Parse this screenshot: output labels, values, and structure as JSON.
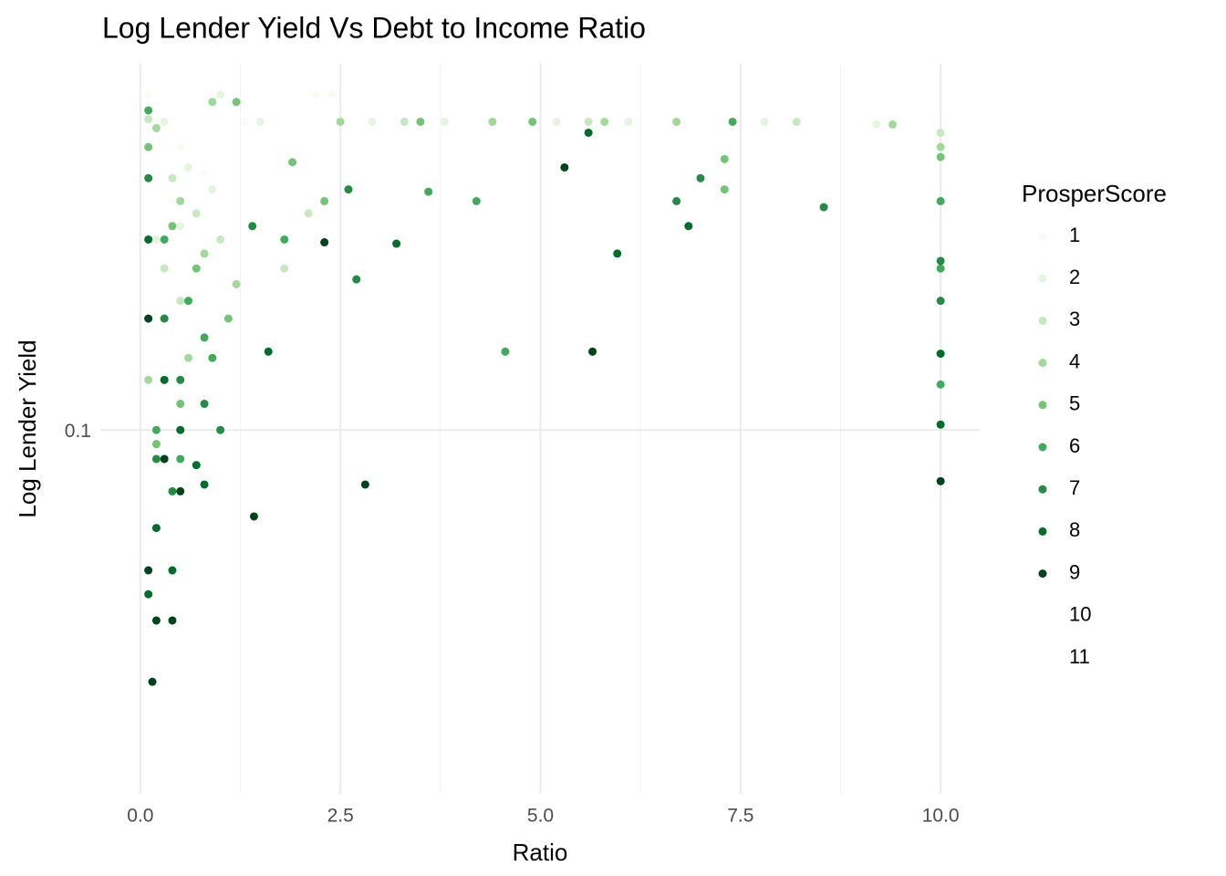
{
  "chart_data": {
    "type": "scatter",
    "title": "Log Lender Yield Vs Debt to Income Ratio",
    "x_label": "Ratio",
    "y_label": "Log Lender Yield",
    "legend_title": "ProsperScore",
    "log_y": true,
    "grid": true,
    "legend": "right",
    "xlim": [
      -0.5,
      10.5
    ],
    "ylim": [
      0.0266,
      0.379
    ],
    "xticks": [
      {
        "value": 0,
        "label": "0.0"
      },
      2.5,
      {
        "value": 5,
        "label": "5.0"
      },
      7.5,
      {
        "value": 10,
        "label": "10.0"
      }
    ],
    "yticks": [
      0.1
    ],
    "series": [
      {
        "name": "1",
        "color": "#f7fcf5",
        "x": [
          0.2,
          0.5,
          0.8,
          1.3,
          2.2,
          2.4,
          0.4,
          0.1
        ],
        "values": [
          0.307,
          0.28,
          0.255,
          0.307,
          0.339,
          0.339,
          0.23,
          0.339
        ]
      },
      {
        "name": "2",
        "color": "#e5f5e0",
        "x": [
          0.3,
          0.6,
          0.9,
          1.5,
          2.9,
          3.8,
          5.2,
          6.1,
          7.8,
          9.2,
          0.2,
          0.5,
          1.0
        ],
        "values": [
          0.307,
          0.26,
          0.24,
          0.307,
          0.307,
          0.307,
          0.307,
          0.307,
          0.307,
          0.304,
          0.2,
          0.21,
          0.339
        ]
      },
      {
        "name": "3",
        "color": "#c7e9c0",
        "x": [
          0.1,
          0.4,
          0.7,
          1.0,
          1.8,
          2.1,
          3.3,
          5.6,
          8.2,
          0.3,
          0.5,
          0.8,
          10
        ],
        "values": [
          0.31,
          0.25,
          0.22,
          0.2,
          0.18,
          0.22,
          0.307,
          0.307,
          0.307,
          0.18,
          0.16,
          0.14,
          0.295
        ]
      },
      {
        "name": "4",
        "color": "#a1d99b",
        "x": [
          0.2,
          0.5,
          0.8,
          1.2,
          2.5,
          4.4,
          5.8,
          6.7,
          9.4,
          0.3,
          0.6,
          0.1,
          10,
          0.9
        ],
        "values": [
          0.3,
          0.23,
          0.19,
          0.17,
          0.307,
          0.307,
          0.307,
          0.307,
          0.304,
          0.15,
          0.13,
          0.12,
          0.28,
          0.33
        ]
      },
      {
        "name": "5",
        "color": "#74c476",
        "x": [
          0.1,
          0.4,
          0.7,
          1.1,
          1.9,
          2.3,
          3.5,
          4.9,
          7.3,
          7.3,
          10,
          0.3,
          0.5,
          0.2,
          1.2
        ],
        "values": [
          0.28,
          0.21,
          0.18,
          0.15,
          0.265,
          0.23,
          0.307,
          0.307,
          0.268,
          0.24,
          0.27,
          0.12,
          0.11,
          0.095,
          0.33
        ]
      },
      {
        "name": "6",
        "color": "#41ab5d",
        "x": [
          0.1,
          0.3,
          0.6,
          0.9,
          1.8,
          3.6,
          4.2,
          4.56,
          7.4,
          10,
          10,
          10,
          0.2,
          0.5,
          0.8
        ],
        "values": [
          0.32,
          0.2,
          0.16,
          0.13,
          0.2,
          0.238,
          0.23,
          0.133,
          0.307,
          0.23,
          0.18,
          0.118,
          0.1,
          0.09,
          0.14
        ]
      },
      {
        "name": "7",
        "color": "#238b45",
        "x": [
          0.1,
          0.3,
          0.5,
          0.8,
          1.4,
          2.7,
          2.6,
          6.7,
          7.0,
          8.54,
          10,
          10,
          0.2,
          0.4,
          1.0
        ],
        "values": [
          0.25,
          0.15,
          0.12,
          0.11,
          0.21,
          0.173,
          0.24,
          0.23,
          0.25,
          0.225,
          0.185,
          0.16,
          0.09,
          0.08,
          0.1
        ]
      },
      {
        "name": "8",
        "color": "#006d2c",
        "x": [
          0.1,
          0.3,
          0.5,
          0.7,
          1.6,
          3.2,
          5.96,
          6.85,
          5.6,
          10,
          10,
          0.2,
          0.4,
          0.8,
          0.1
        ],
        "values": [
          0.2,
          0.12,
          0.1,
          0.088,
          0.133,
          0.197,
          0.19,
          0.21,
          0.295,
          0.132,
          0.102,
          0.07,
          0.06,
          0.082,
          0.055
        ]
      },
      {
        "name": "9",
        "color": "#00441b",
        "x": [
          0.1,
          0.3,
          0.5,
          2.3,
          2.81,
          5.3,
          5.65,
          1.42,
          10,
          0.15,
          0.2,
          0.4,
          0.1
        ],
        "values": [
          0.15,
          0.09,
          0.08,
          0.198,
          0.082,
          0.26,
          0.133,
          0.073,
          0.083,
          0.04,
          0.05,
          0.05,
          0.06
        ]
      },
      {
        "name": "10",
        "color": null,
        "x": [],
        "values": []
      },
      {
        "name": "11",
        "color": null,
        "x": [],
        "values": []
      }
    ]
  }
}
